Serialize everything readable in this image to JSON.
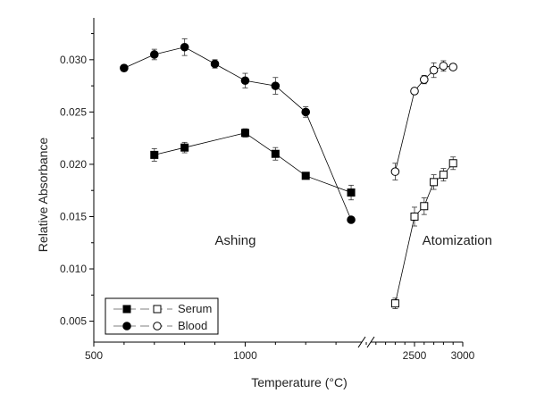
{
  "chart_data": {
    "type": "scatter",
    "title": "",
    "xlabel": "Temperature (°C)",
    "ylabel": "Relative Absorbance",
    "x_axis_break": true,
    "x_segments": [
      {
        "range": [
          500,
          1400
        ],
        "ticks": [
          500,
          1000
        ],
        "tick_labels": [
          "500",
          "1000"
        ]
      },
      {
        "range": [
          2000,
          3000
        ],
        "ticks": [
          2500,
          3000
        ],
        "tick_labels": [
          "2500",
          "3000"
        ]
      }
    ],
    "ylim": [
      0.003,
      0.034
    ],
    "yticks": [
      0.005,
      0.01,
      0.015,
      0.02,
      0.025,
      0.03
    ],
    "ytick_labels": [
      "0.005",
      "0.010",
      "0.015",
      "0.020",
      "0.025",
      "0.030"
    ],
    "grid": false,
    "legend": {
      "placement": "bottom-left",
      "entries": [
        {
          "name": "Serum",
          "filled_marker": "square",
          "open_marker": "square"
        },
        {
          "name": "Blood",
          "filled_marker": "circle",
          "open_marker": "circle"
        }
      ]
    },
    "annotations": [
      {
        "text": "Ashing",
        "x": 900,
        "y": 0.0123
      },
      {
        "text": "Atomization",
        "x": 2580,
        "y": 0.0123
      }
    ],
    "series": [
      {
        "name": "Serum ashing",
        "group": "Serum",
        "marker": "square",
        "filled": true,
        "segment": 0,
        "x": [
          700,
          800,
          1000,
          1100,
          1200,
          1350
        ],
        "y": [
          0.0209,
          0.0216,
          0.023,
          0.021,
          0.0189,
          0.0173
        ],
        "err": [
          0.0006,
          0.0005,
          0.0004,
          0.0006,
          0.0002,
          0.0007
        ]
      },
      {
        "name": "Blood ashing",
        "group": "Blood",
        "marker": "circle",
        "filled": true,
        "segment": 0,
        "x": [
          600,
          700,
          800,
          900,
          1000,
          1100,
          1200,
          1350
        ],
        "y": [
          0.0292,
          0.0305,
          0.0312,
          0.0296,
          0.028,
          0.0275,
          0.025,
          0.0147
        ],
        "err": [
          0.0003,
          0.0005,
          0.0008,
          0.0004,
          0.0007,
          0.0008,
          0.0005,
          0.0002
        ]
      },
      {
        "name": "Serum atomization",
        "group": "Serum",
        "marker": "square",
        "filled": false,
        "segment": 1,
        "x": [
          2300,
          2500,
          2600,
          2700,
          2800,
          2900
        ],
        "y": [
          0.0067,
          0.015,
          0.016,
          0.0183,
          0.019,
          0.0201
        ],
        "err": [
          0.0005,
          0.0009,
          0.0008,
          0.0007,
          0.0006,
          0.0006
        ]
      },
      {
        "name": "Blood atomization",
        "group": "Blood",
        "marker": "circle",
        "filled": false,
        "segment": 1,
        "x": [
          2300,
          2500,
          2600,
          2700,
          2800,
          2900
        ],
        "y": [
          0.0193,
          0.027,
          0.0281,
          0.029,
          0.0294,
          0.0293
        ],
        "err": [
          0.0008,
          0.0003,
          0.0004,
          0.0007,
          0.0005,
          0.0003
        ]
      }
    ]
  }
}
